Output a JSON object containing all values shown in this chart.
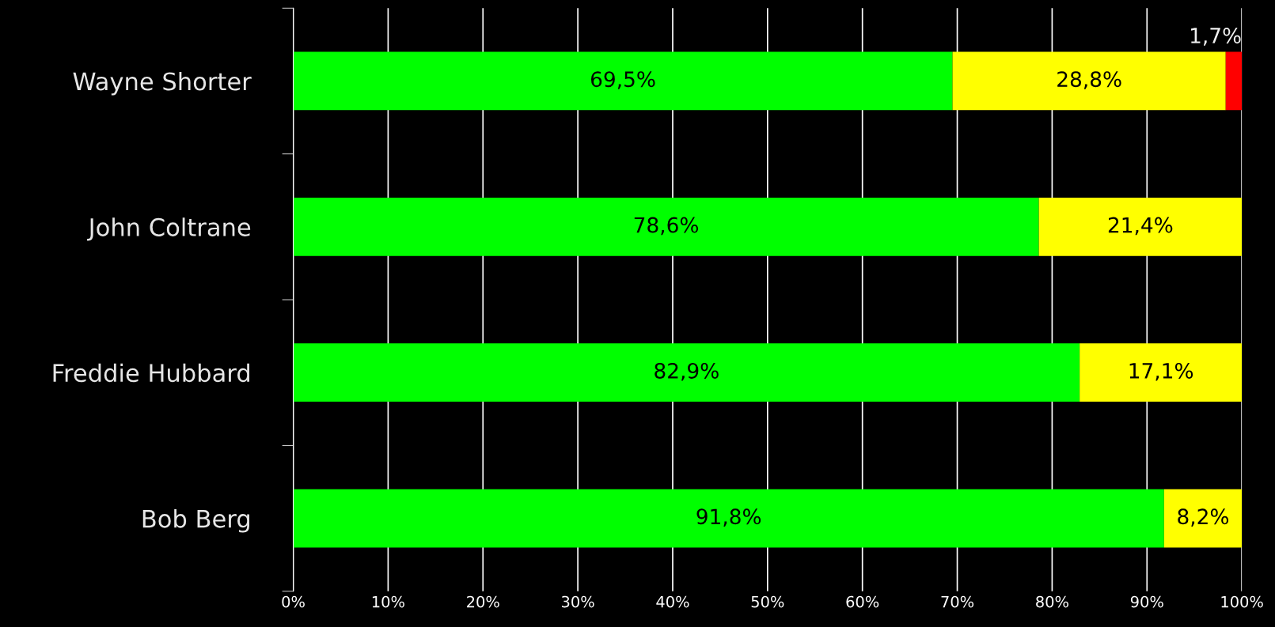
{
  "chart_data": {
    "type": "bar",
    "orientation": "horizontal",
    "stacked": true,
    "categories": [
      "Wayne Shorter",
      "John Coltrane",
      "Freddie Hubbard",
      "Bob Berg"
    ],
    "series": [
      {
        "color": "#00ff00",
        "values": [
          69.5,
          78.6,
          82.9,
          91.8
        ],
        "value_labels": [
          "69,5%",
          "78,6%",
          "82,9%",
          "91,8%"
        ]
      },
      {
        "color": "#ffff00",
        "values": [
          28.8,
          21.4,
          17.1,
          8.2
        ],
        "value_labels": [
          "28,8%",
          "21,4%",
          "17,1%",
          "8,2%"
        ]
      },
      {
        "color": "#ff0000",
        "values": [
          1.7,
          null,
          null,
          null
        ],
        "value_labels": [
          "1,7%",
          null,
          null,
          null
        ]
      }
    ],
    "xlim": [
      0,
      100
    ],
    "xticks": [
      {
        "value": 0,
        "label": "0%"
      },
      {
        "value": 10,
        "label": "10%"
      },
      {
        "value": 20,
        "label": "20%"
      },
      {
        "value": 30,
        "label": "30%"
      },
      {
        "value": 40,
        "label": "40%"
      },
      {
        "value": 50,
        "label": "50%"
      },
      {
        "value": 60,
        "label": "60%"
      },
      {
        "value": 70,
        "label": "70%"
      },
      {
        "value": 80,
        "label": "80%"
      },
      {
        "value": 90,
        "label": "90%"
      },
      {
        "value": 100,
        "label": "100%"
      }
    ],
    "grid": "x"
  }
}
